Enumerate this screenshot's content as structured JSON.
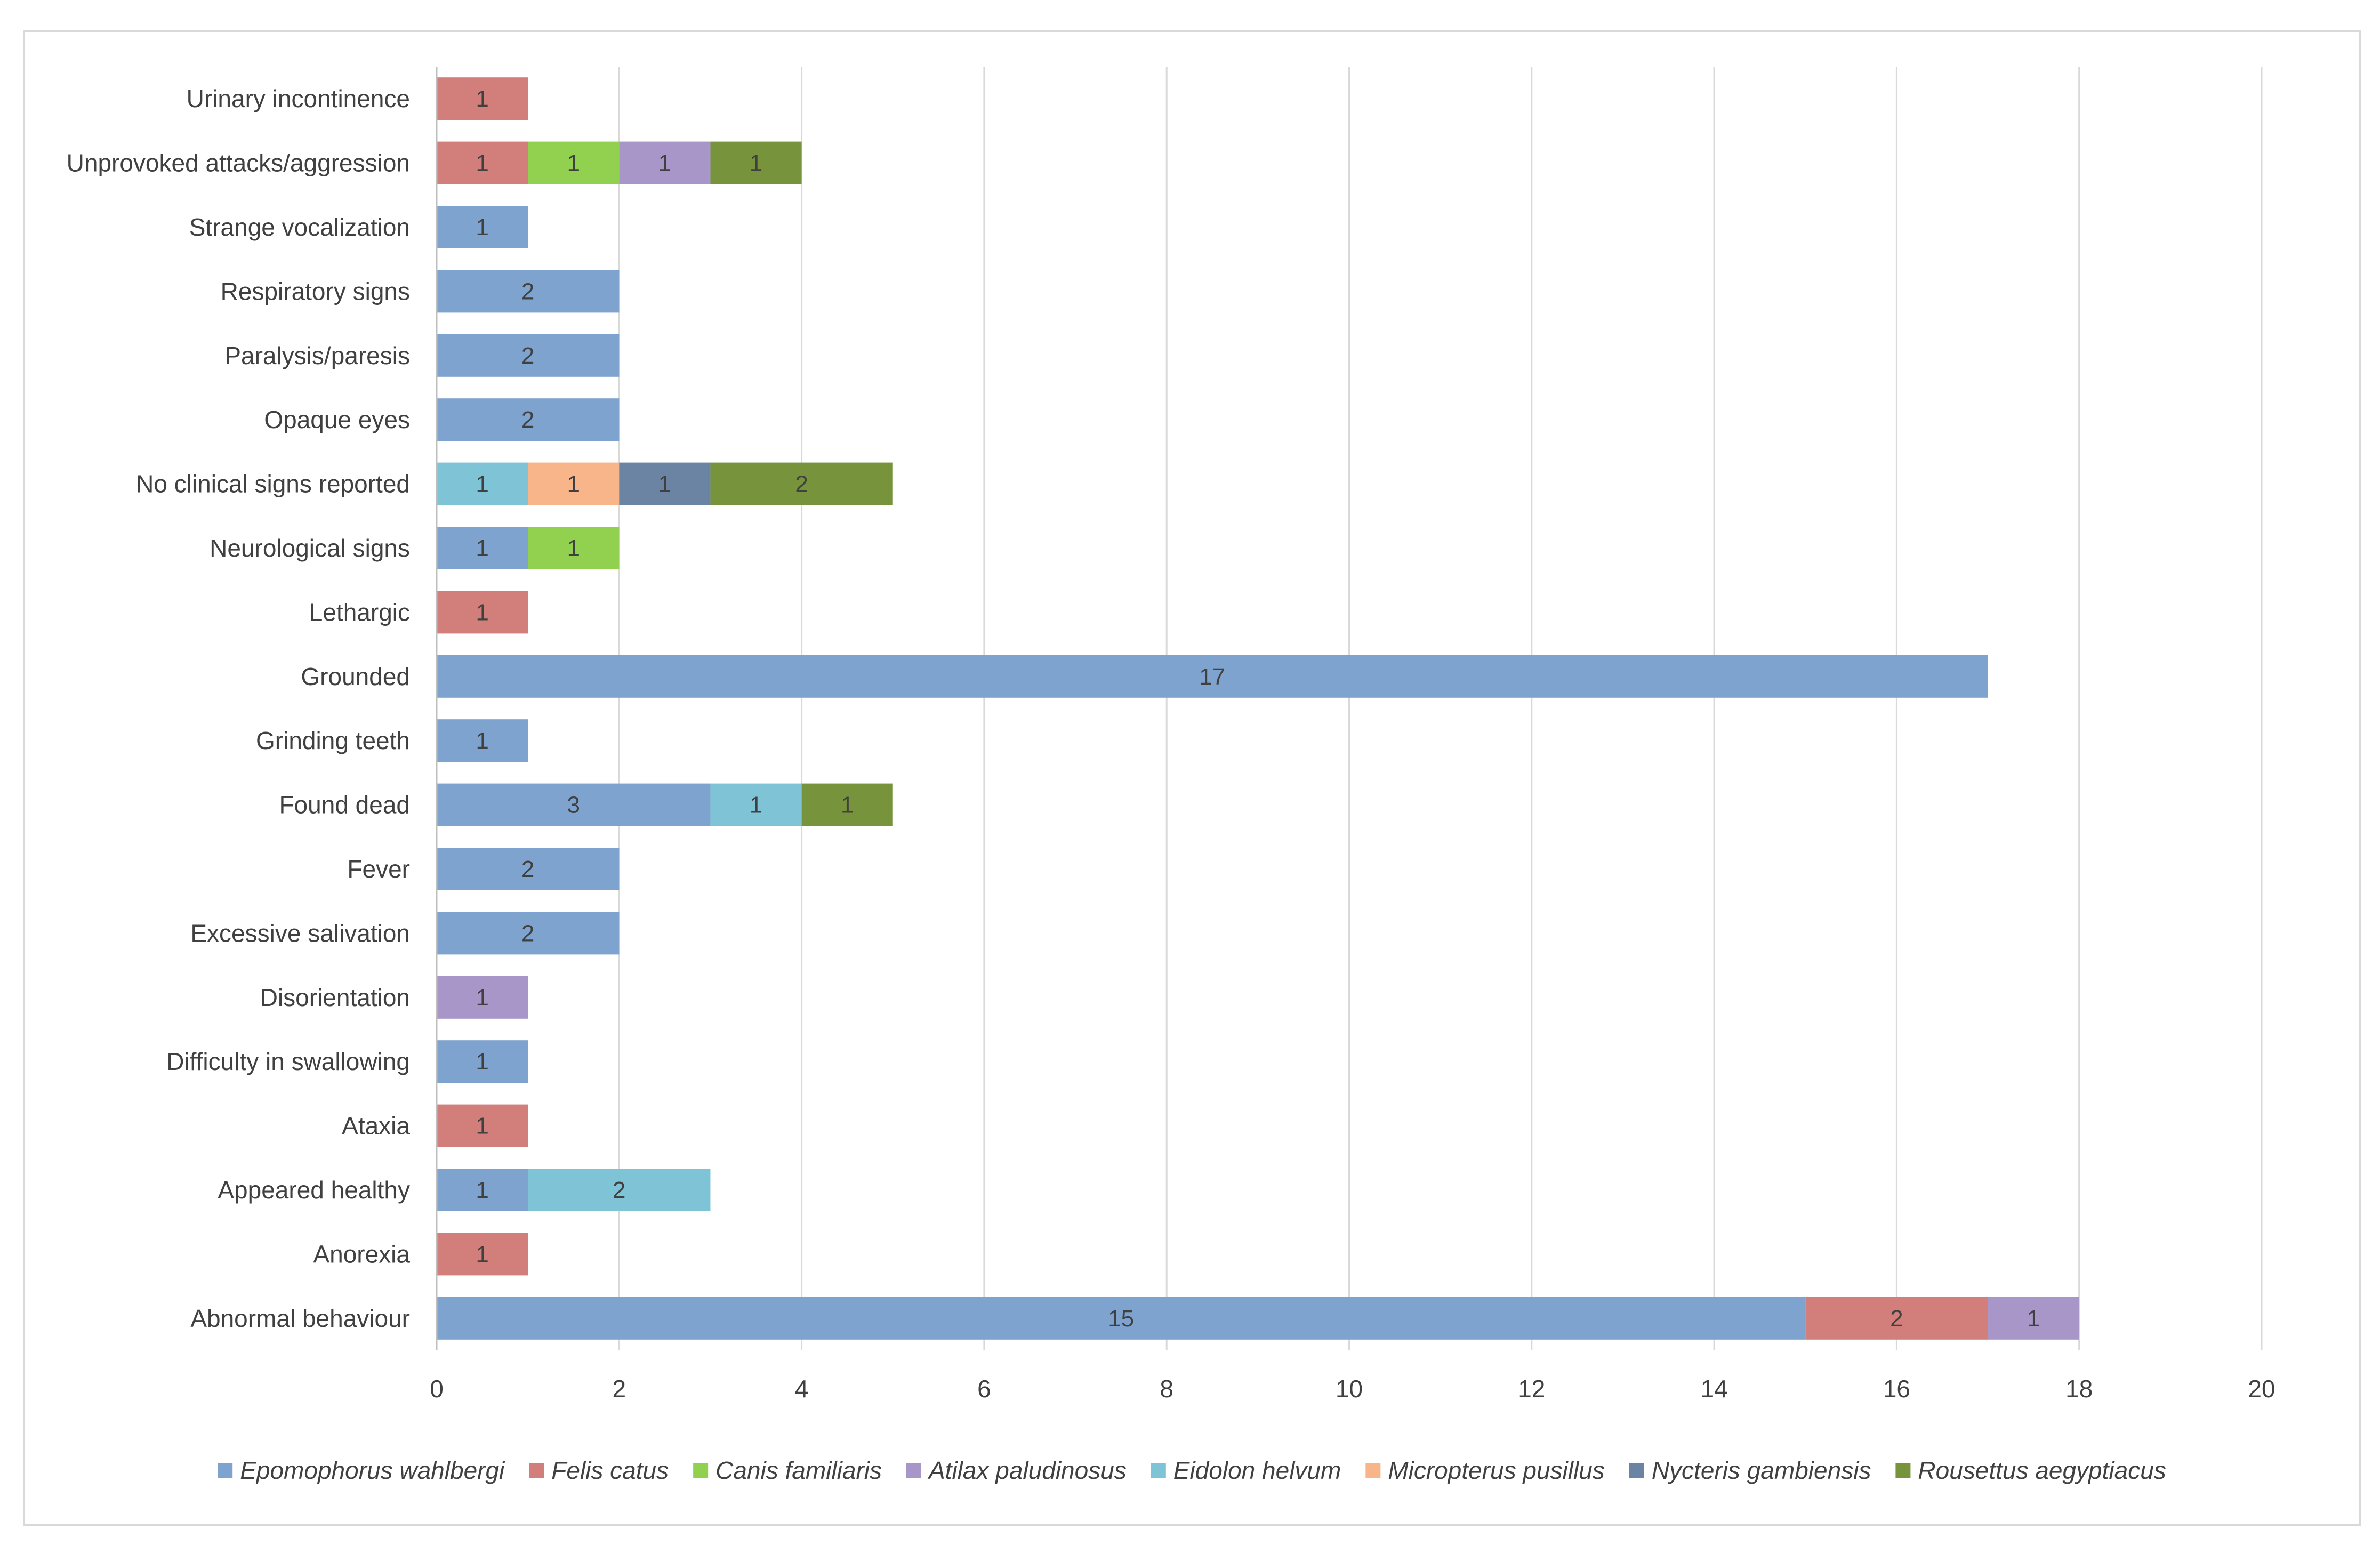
{
  "chart_data": {
    "type": "bar",
    "orientation": "horizontal",
    "stacked": true,
    "title": "",
    "xlabel": "",
    "ylabel": "",
    "xlim": [
      0,
      20
    ],
    "xticks": [
      0,
      2,
      4,
      6,
      8,
      10,
      12,
      14,
      16,
      18,
      20
    ],
    "grid": true,
    "legend_position": "bottom",
    "categories": [
      "Urinary incontinence",
      "Unprovoked attacks/aggression",
      "Strange vocalization",
      "Respiratory signs",
      "Paralysis/paresis",
      "Opaque eyes",
      "No clinical signs reported",
      "Neurological signs",
      "Lethargic",
      "Grounded",
      "Grinding teeth",
      "Found dead",
      "Fever",
      "Excessive salivation",
      "Disorientation",
      "Difficulty in swallowing",
      "Ataxia",
      "Appeared healthy",
      "Anorexia",
      "Abnormal behaviour"
    ],
    "series": [
      {
        "name": "Epomophorus wahlbergi",
        "color": "#7fa3cf",
        "values": [
          0,
          0,
          1,
          2,
          2,
          2,
          0,
          1,
          0,
          17,
          1,
          3,
          2,
          2,
          0,
          1,
          0,
          1,
          0,
          15
        ]
      },
      {
        "name": "Felis catus",
        "color": "#d27f7c",
        "values": [
          1,
          1,
          0,
          0,
          0,
          0,
          0,
          0,
          1,
          0,
          0,
          0,
          0,
          0,
          0,
          0,
          1,
          0,
          1,
          2
        ]
      },
      {
        "name": "Canis familiaris",
        "color": "#92d050",
        "values": [
          0,
          1,
          0,
          0,
          0,
          0,
          0,
          1,
          0,
          0,
          0,
          0,
          0,
          0,
          0,
          0,
          0,
          0,
          0,
          0
        ]
      },
      {
        "name": "Atilax paludinosus",
        "color": "#a896c8",
        "values": [
          0,
          1,
          0,
          0,
          0,
          0,
          0,
          0,
          0,
          0,
          0,
          0,
          0,
          0,
          1,
          0,
          0,
          0,
          0,
          1
        ]
      },
      {
        "name": "Eidolon helvum",
        "color": "#7ec3d6",
        "values": [
          0,
          0,
          0,
          0,
          0,
          0,
          1,
          0,
          0,
          0,
          0,
          1,
          0,
          0,
          0,
          0,
          0,
          2,
          0,
          0
        ]
      },
      {
        "name": "Micropterus pusillus",
        "color": "#f8b58a",
        "values": [
          0,
          0,
          0,
          0,
          0,
          0,
          1,
          0,
          0,
          0,
          0,
          0,
          0,
          0,
          0,
          0,
          0,
          0,
          0,
          0
        ]
      },
      {
        "name": "Nycteris gambiensis",
        "color": "#6b84a3",
        "values": [
          0,
          0,
          0,
          0,
          0,
          0,
          1,
          0,
          0,
          0,
          0,
          0,
          0,
          0,
          0,
          0,
          0,
          0,
          0,
          0
        ]
      },
      {
        "name": "Rousettus aegyptiacus",
        "color": "#77933c",
        "values": [
          0,
          1,
          0,
          0,
          0,
          0,
          2,
          0,
          0,
          0,
          0,
          1,
          0,
          0,
          0,
          0,
          0,
          0,
          0,
          0
        ]
      }
    ]
  }
}
